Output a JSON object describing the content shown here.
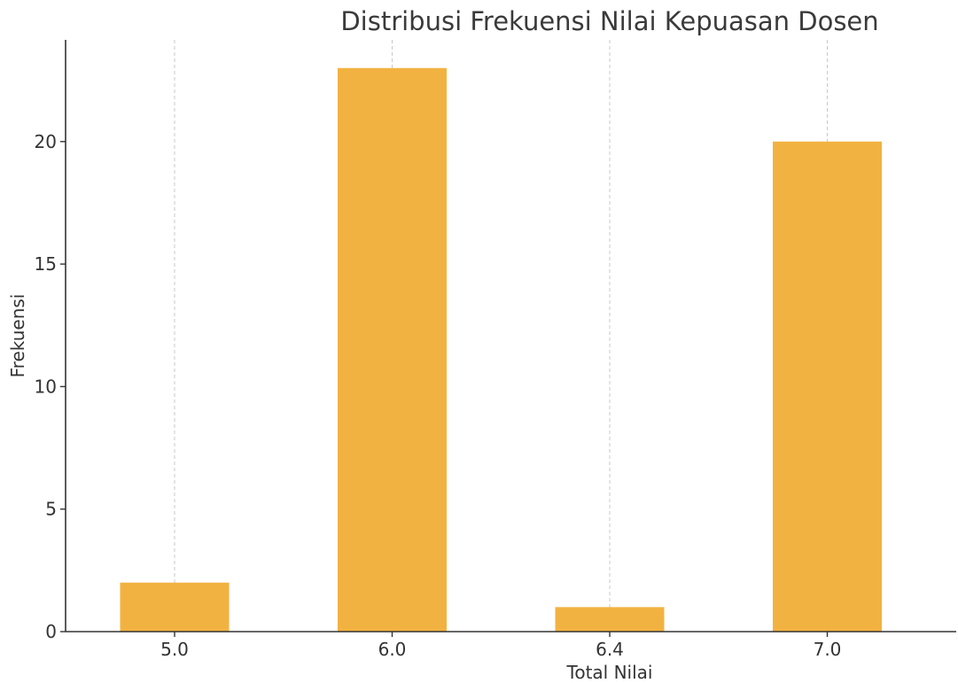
{
  "chart_data": {
    "type": "bar",
    "title": "Distribusi Frekuensi Nilai Kepuasan Dosen",
    "xlabel": "Total Nilai",
    "ylabel": "Frekuensi",
    "categories": [
      "5.0",
      "6.0",
      "6.4",
      "7.0"
    ],
    "values": [
      2,
      23,
      1,
      20
    ],
    "ylim": [
      0,
      24.15
    ],
    "yticks": [
      "0",
      "5",
      "10",
      "15",
      "20"
    ],
    "grid": "x-dashed",
    "bar_color": "#F2B241",
    "axis_color": "#333333",
    "grid_color": "#c8c8c8"
  }
}
